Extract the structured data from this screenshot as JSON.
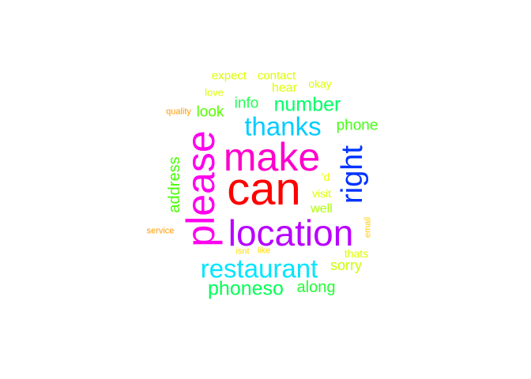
{
  "wordcloud": {
    "words": [
      {
        "text": "can",
        "color": "#ff0000"
      },
      {
        "text": "make",
        "color": "#ff00cc"
      },
      {
        "text": "please",
        "color": "#ff00ee"
      },
      {
        "text": "location",
        "color": "#b800ff"
      },
      {
        "text": "right",
        "color": "#0033ff"
      },
      {
        "text": "restaurant",
        "color": "#00e5ff"
      },
      {
        "text": "thanks",
        "color": "#00ccff"
      },
      {
        "text": "number",
        "color": "#00ff66"
      },
      {
        "text": "phoneso",
        "color": "#00ff55"
      },
      {
        "text": "along",
        "color": "#22ff33"
      },
      {
        "text": "address",
        "color": "#44ff00"
      },
      {
        "text": "phone",
        "color": "#44ff11"
      },
      {
        "text": "info",
        "color": "#22ff55"
      },
      {
        "text": "look",
        "color": "#55ff00"
      },
      {
        "text": "sorry",
        "color": "#ccff00"
      },
      {
        "text": "well",
        "color": "#aaff00"
      },
      {
        "text": "visit",
        "color": "#ddff00"
      },
      {
        "text": "'d",
        "color": "#eeff00"
      },
      {
        "text": "hear",
        "color": "#ddff00"
      },
      {
        "text": "okay",
        "color": "#ddff00"
      },
      {
        "text": "expect",
        "color": "#ddff00"
      },
      {
        "text": "contact",
        "color": "#ddff00"
      },
      {
        "text": "love",
        "color": "#ddff00"
      },
      {
        "text": "thats",
        "color": "#ddff00"
      },
      {
        "text": "quality",
        "color": "#ff9900"
      },
      {
        "text": "service",
        "color": "#ff9900"
      },
      {
        "text": "email",
        "color": "#ffcc00"
      },
      {
        "text": "isnt",
        "color": "#ffdd00"
      },
      {
        "text": "like",
        "color": "#ffdd00"
      }
    ]
  }
}
